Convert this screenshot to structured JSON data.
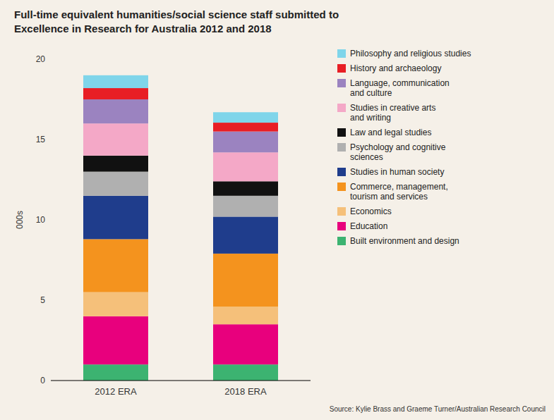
{
  "chart_data": {
    "type": "bar",
    "stacked": true,
    "title": "Full-time equivalent humanities/social science staff submitted to",
    "subtitle": "Excellence in Research for Australia 2012 and 2018",
    "ylabel": "000s",
    "annotations": [
      "Source: Kylie Brass and Graeme Turner/Australian Research Council"
    ],
    "categories": [
      "2012 ERA",
      "2018 ERA"
    ],
    "series": [
      {
        "name": "Built environment and design",
        "color": "#3cb371",
        "values": [
          1.0,
          1.0
        ]
      },
      {
        "name": "Education",
        "color": "#e8007d",
        "values": [
          3.0,
          2.5
        ]
      },
      {
        "name": "Economics",
        "color": "#f5c07a",
        "values": [
          1.5,
          1.1
        ]
      },
      {
        "name": "Commerce, management,\ntourism and services",
        "color": "#f4931e",
        "values": [
          3.3,
          3.3
        ]
      },
      {
        "name": "Studies in human society",
        "color": "#1f3d8c",
        "values": [
          2.7,
          2.3
        ]
      },
      {
        "name": "Psychology and cognitive\nsciences",
        "color": "#b0b0b0",
        "values": [
          1.5,
          1.3
        ]
      },
      {
        "name": "Law and legal studies",
        "color": "#111111",
        "values": [
          1.0,
          0.9
        ]
      },
      {
        "name": "Studies in creative arts\nand writing",
        "color": "#f4a8c7",
        "values": [
          2.0,
          1.8
        ]
      },
      {
        "name": "Language, communication\nand culture",
        "color": "#9b83c0",
        "values": [
          1.5,
          1.3
        ]
      },
      {
        "name": "History and archaeology",
        "color": "#e81e25",
        "values": [
          0.7,
          0.55
        ]
      },
      {
        "name": "Philosophy and religious studies",
        "color": "#7fd5ea",
        "values": [
          0.8,
          0.65
        ]
      }
    ],
    "ylim": [
      0,
      20
    ],
    "yticks": [
      0,
      5,
      10,
      15,
      20
    ],
    "grid": false,
    "legend": "upper right"
  }
}
